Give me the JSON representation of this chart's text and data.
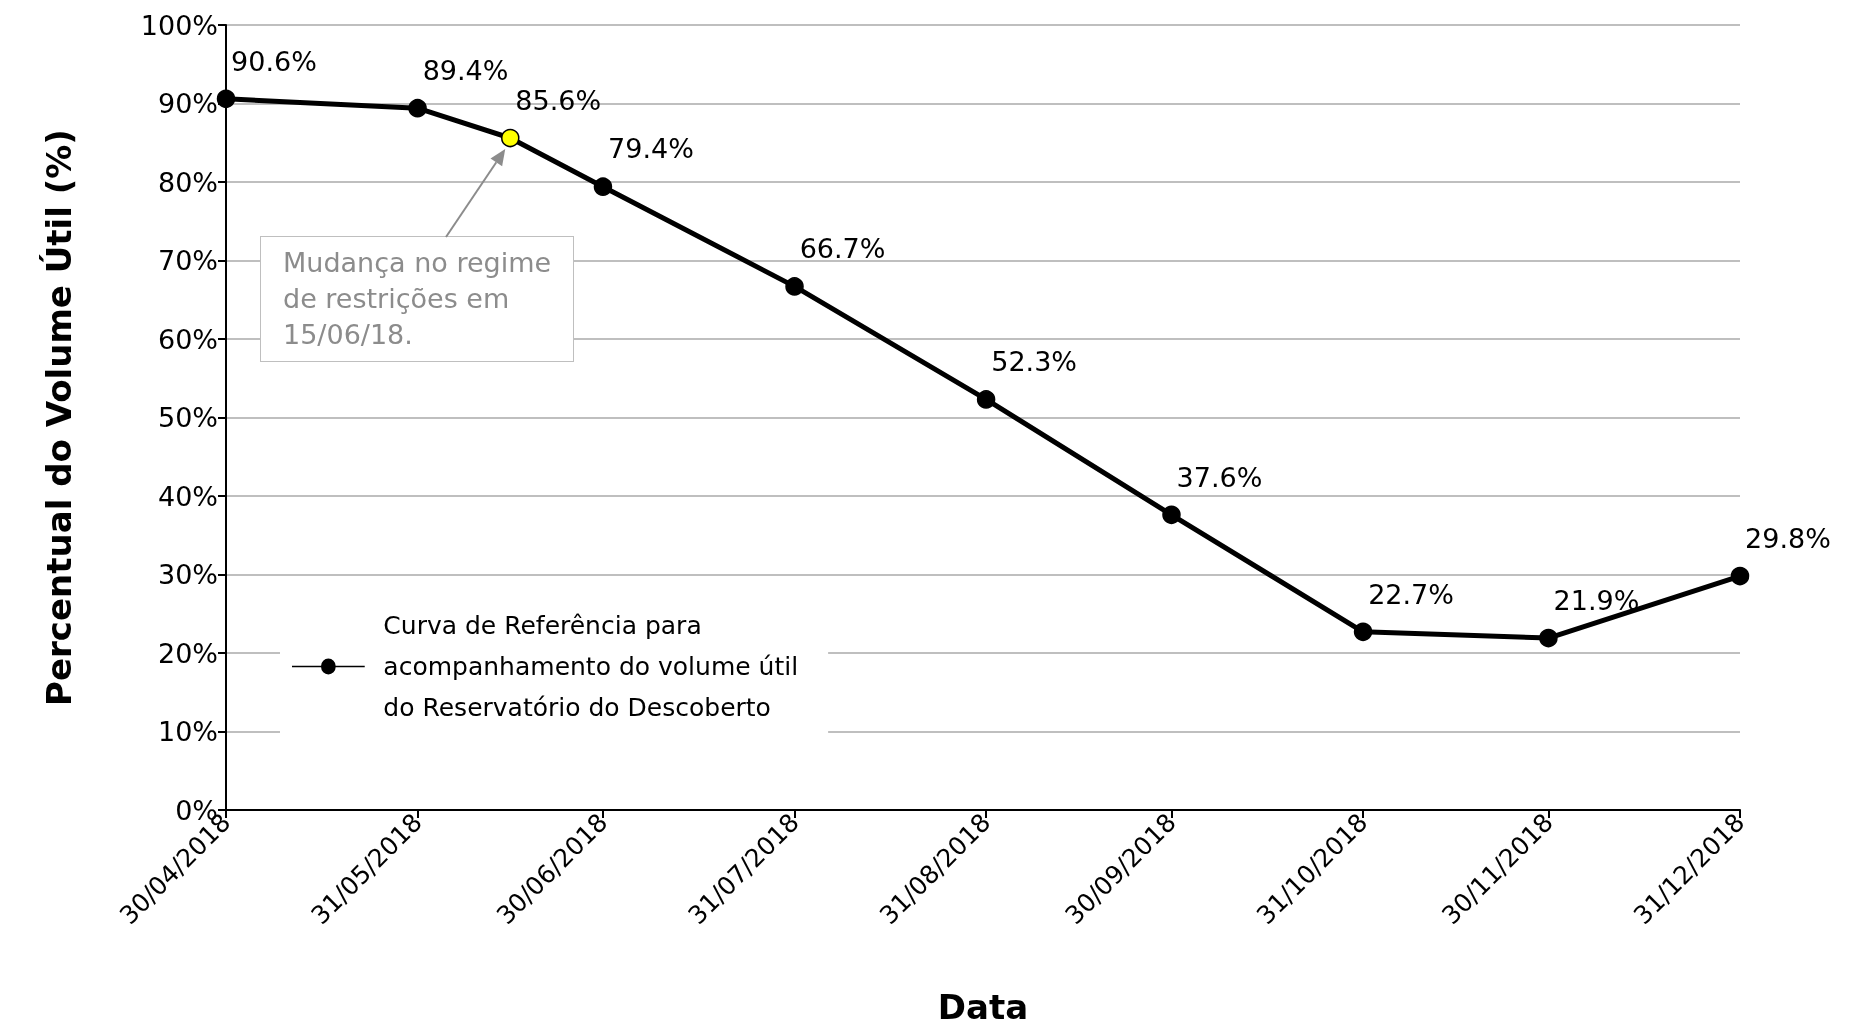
{
  "chart_data": {
    "type": "line",
    "xlabel": "Data",
    "ylabel": "Percentual do Volume Útil (%)",
    "x": [
      "2018-04-30",
      "2018-05-31",
      "2018-06-15",
      "2018-06-30",
      "2018-07-31",
      "2018-08-31",
      "2018-09-30",
      "2018-10-31",
      "2018-11-30",
      "2018-12-31"
    ],
    "series": [
      {
        "name": "Curva de Referência para\nacompanhamento do volume útil\ndo Reservatório do Descoberto",
        "color": "#000000",
        "values": [
          90.6,
          89.4,
          85.6,
          79.4,
          66.7,
          52.3,
          37.6,
          22.7,
          21.9,
          29.8
        ],
        "colors": [
          "#000000",
          "#000000",
          "#ffff00",
          "#000000",
          "#000000",
          "#000000",
          "#000000",
          "#000000",
          "#000000",
          "#000000"
        ],
        "value_labels": [
          "90.6%",
          "89.4%",
          "85.6%",
          "79.4%",
          "66.7%",
          "52.3%",
          "37.6%",
          "22.7%",
          "21.9%",
          "29.8%"
        ]
      }
    ],
    "xlim": [
      "2018-04-30",
      "2018-12-31"
    ],
    "xticks": [
      {
        "value": "2018-04-30",
        "label": "30/04/2018"
      },
      {
        "value": "2018-05-31",
        "label": "31/05/2018"
      },
      {
        "value": "2018-06-30",
        "label": "30/06/2018"
      },
      {
        "value": "2018-07-31",
        "label": "31/07/2018"
      },
      {
        "value": "2018-08-31",
        "label": "31/08/2018"
      },
      {
        "value": "2018-09-30",
        "label": "30/09/2018"
      },
      {
        "value": "2018-10-31",
        "label": "31/10/2018"
      },
      {
        "value": "2018-11-30",
        "label": "30/11/2018"
      },
      {
        "value": "2018-12-31",
        "label": "31/12/2018"
      }
    ],
    "ylim": [
      0,
      100
    ],
    "yticks": [
      {
        "value": 0,
        "label": "0%"
      },
      {
        "value": 10,
        "label": "10%"
      },
      {
        "value": 20,
        "label": "20%"
      },
      {
        "value": 30,
        "label": "30%"
      },
      {
        "value": 40,
        "label": "40%"
      },
      {
        "value": 50,
        "label": "50%"
      },
      {
        "value": 60,
        "label": "60%"
      },
      {
        "value": 70,
        "label": "70%"
      },
      {
        "value": 80,
        "label": "80%"
      },
      {
        "value": 90,
        "label": "90%"
      },
      {
        "value": 100,
        "label": "100%"
      }
    ],
    "grid": "y",
    "legend": "bottom left",
    "marker": "circle",
    "line_style": "solid",
    "annotations": [
      "Mudança no regime\nde restrições em\n15/06/18."
    ]
  }
}
